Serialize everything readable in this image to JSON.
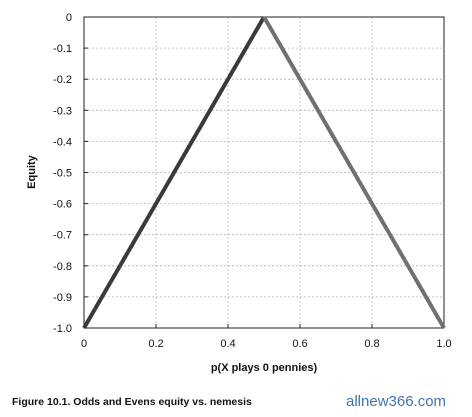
{
  "chart_data": {
    "type": "line",
    "title": "",
    "xlabel": "p(X plays 0 pennies)",
    "ylabel": "Equity",
    "xlim": [
      0,
      1.0
    ],
    "ylim": [
      -1.0,
      0
    ],
    "x_ticks": [
      0,
      0.2,
      0.4,
      0.6,
      0.8,
      1.0
    ],
    "x_tick_labels": [
      "0",
      "0.2",
      "0.4",
      "0.6",
      "0.8",
      "1.0"
    ],
    "y_ticks": [
      0,
      -0.1,
      -0.2,
      -0.3,
      -0.4,
      -0.5,
      -0.6,
      -0.7,
      -0.8,
      -0.9,
      -1.0
    ],
    "y_tick_labels": [
      "0",
      "-0.1",
      "-0.2",
      "-0.3",
      "-0.4",
      "-0.5",
      "-0.6",
      "-0.7",
      "-0.8",
      "-0.9",
      "-1.0"
    ],
    "grid": true,
    "series": [
      {
        "x": [
          0,
          0.5
        ],
        "y": [
          -1.0,
          0
        ],
        "color": "#3a3a3a"
      },
      {
        "x": [
          0.5,
          1.0
        ],
        "y": [
          0,
          -1.0
        ],
        "color": "#707070"
      }
    ]
  },
  "caption": "Figure 10.1. Odds and Evens equity vs. nemesis",
  "watermark": "allnew366.com"
}
